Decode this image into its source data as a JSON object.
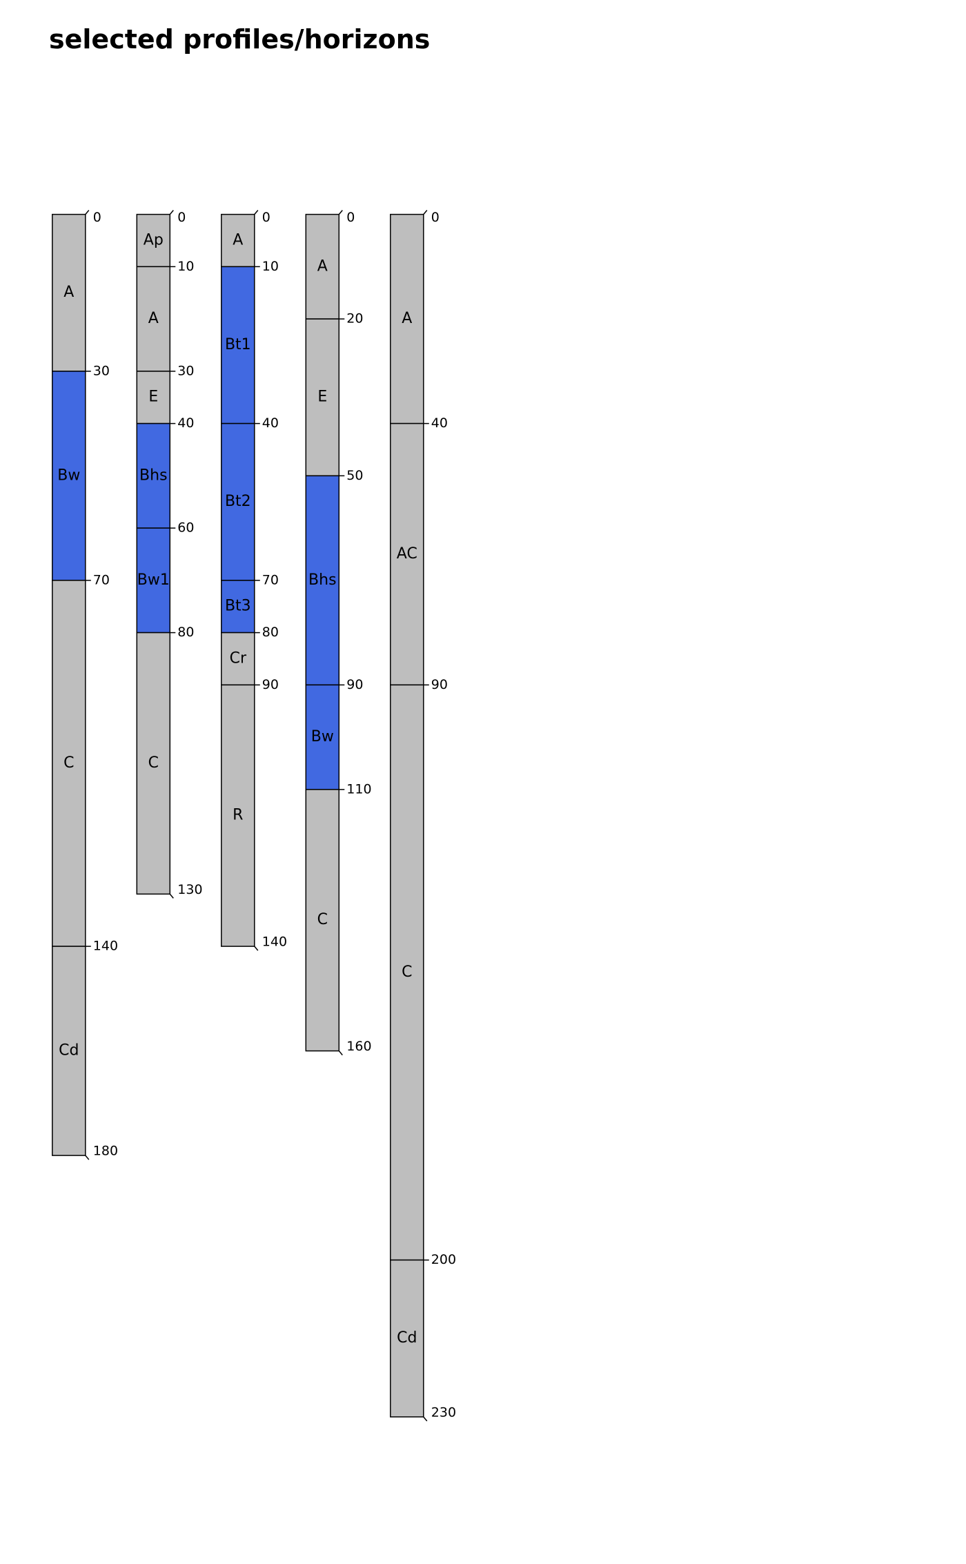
{
  "title": "selected profiles/horizons",
  "profiles": [
    {
      "depths": [
        0,
        30,
        70,
        140,
        180
      ],
      "horizons": [
        {
          "name": "A",
          "color": "#bebebe"
        },
        {
          "name": "Bw",
          "color": "#4169e1"
        },
        {
          "name": "C",
          "color": "#bebebe"
        },
        {
          "name": "Cd",
          "color": "#bebebe"
        }
      ]
    },
    {
      "depths": [
        0,
        10,
        30,
        40,
        60,
        80,
        130
      ],
      "horizons": [
        {
          "name": "Ap",
          "color": "#bebebe"
        },
        {
          "name": "A",
          "color": "#bebebe"
        },
        {
          "name": "E",
          "color": "#bebebe"
        },
        {
          "name": "Bhs",
          "color": "#4169e1"
        },
        {
          "name": "Bw1",
          "color": "#4169e1"
        },
        {
          "name": "C",
          "color": "#bebebe"
        }
      ]
    },
    {
      "depths": [
        0,
        10,
        40,
        70,
        80,
        90,
        140
      ],
      "horizons": [
        {
          "name": "A",
          "color": "#bebebe"
        },
        {
          "name": "Bt1",
          "color": "#4169e1"
        },
        {
          "name": "Bt2",
          "color": "#4169e1"
        },
        {
          "name": "Bt3",
          "color": "#4169e1"
        },
        {
          "name": "Cr",
          "color": "#bebebe"
        },
        {
          "name": "R",
          "color": "#bebebe"
        }
      ]
    },
    {
      "depths": [
        0,
        20,
        50,
        90,
        110,
        160
      ],
      "horizons": [
        {
          "name": "A",
          "color": "#bebebe"
        },
        {
          "name": "E",
          "color": "#bebebe"
        },
        {
          "name": "Bhs",
          "color": "#4169e1"
        },
        {
          "name": "Bw",
          "color": "#4169e1"
        },
        {
          "name": "C",
          "color": "#bebebe"
        }
      ]
    },
    {
      "depths": [
        0,
        40,
        90,
        200,
        230
      ],
      "horizons": [
        {
          "name": "A",
          "color": "#bebebe"
        },
        {
          "name": "AC",
          "color": "#bebebe"
        },
        {
          "name": "C",
          "color": "#bebebe"
        },
        {
          "name": "Cd",
          "color": "#bebebe"
        }
      ]
    }
  ]
}
